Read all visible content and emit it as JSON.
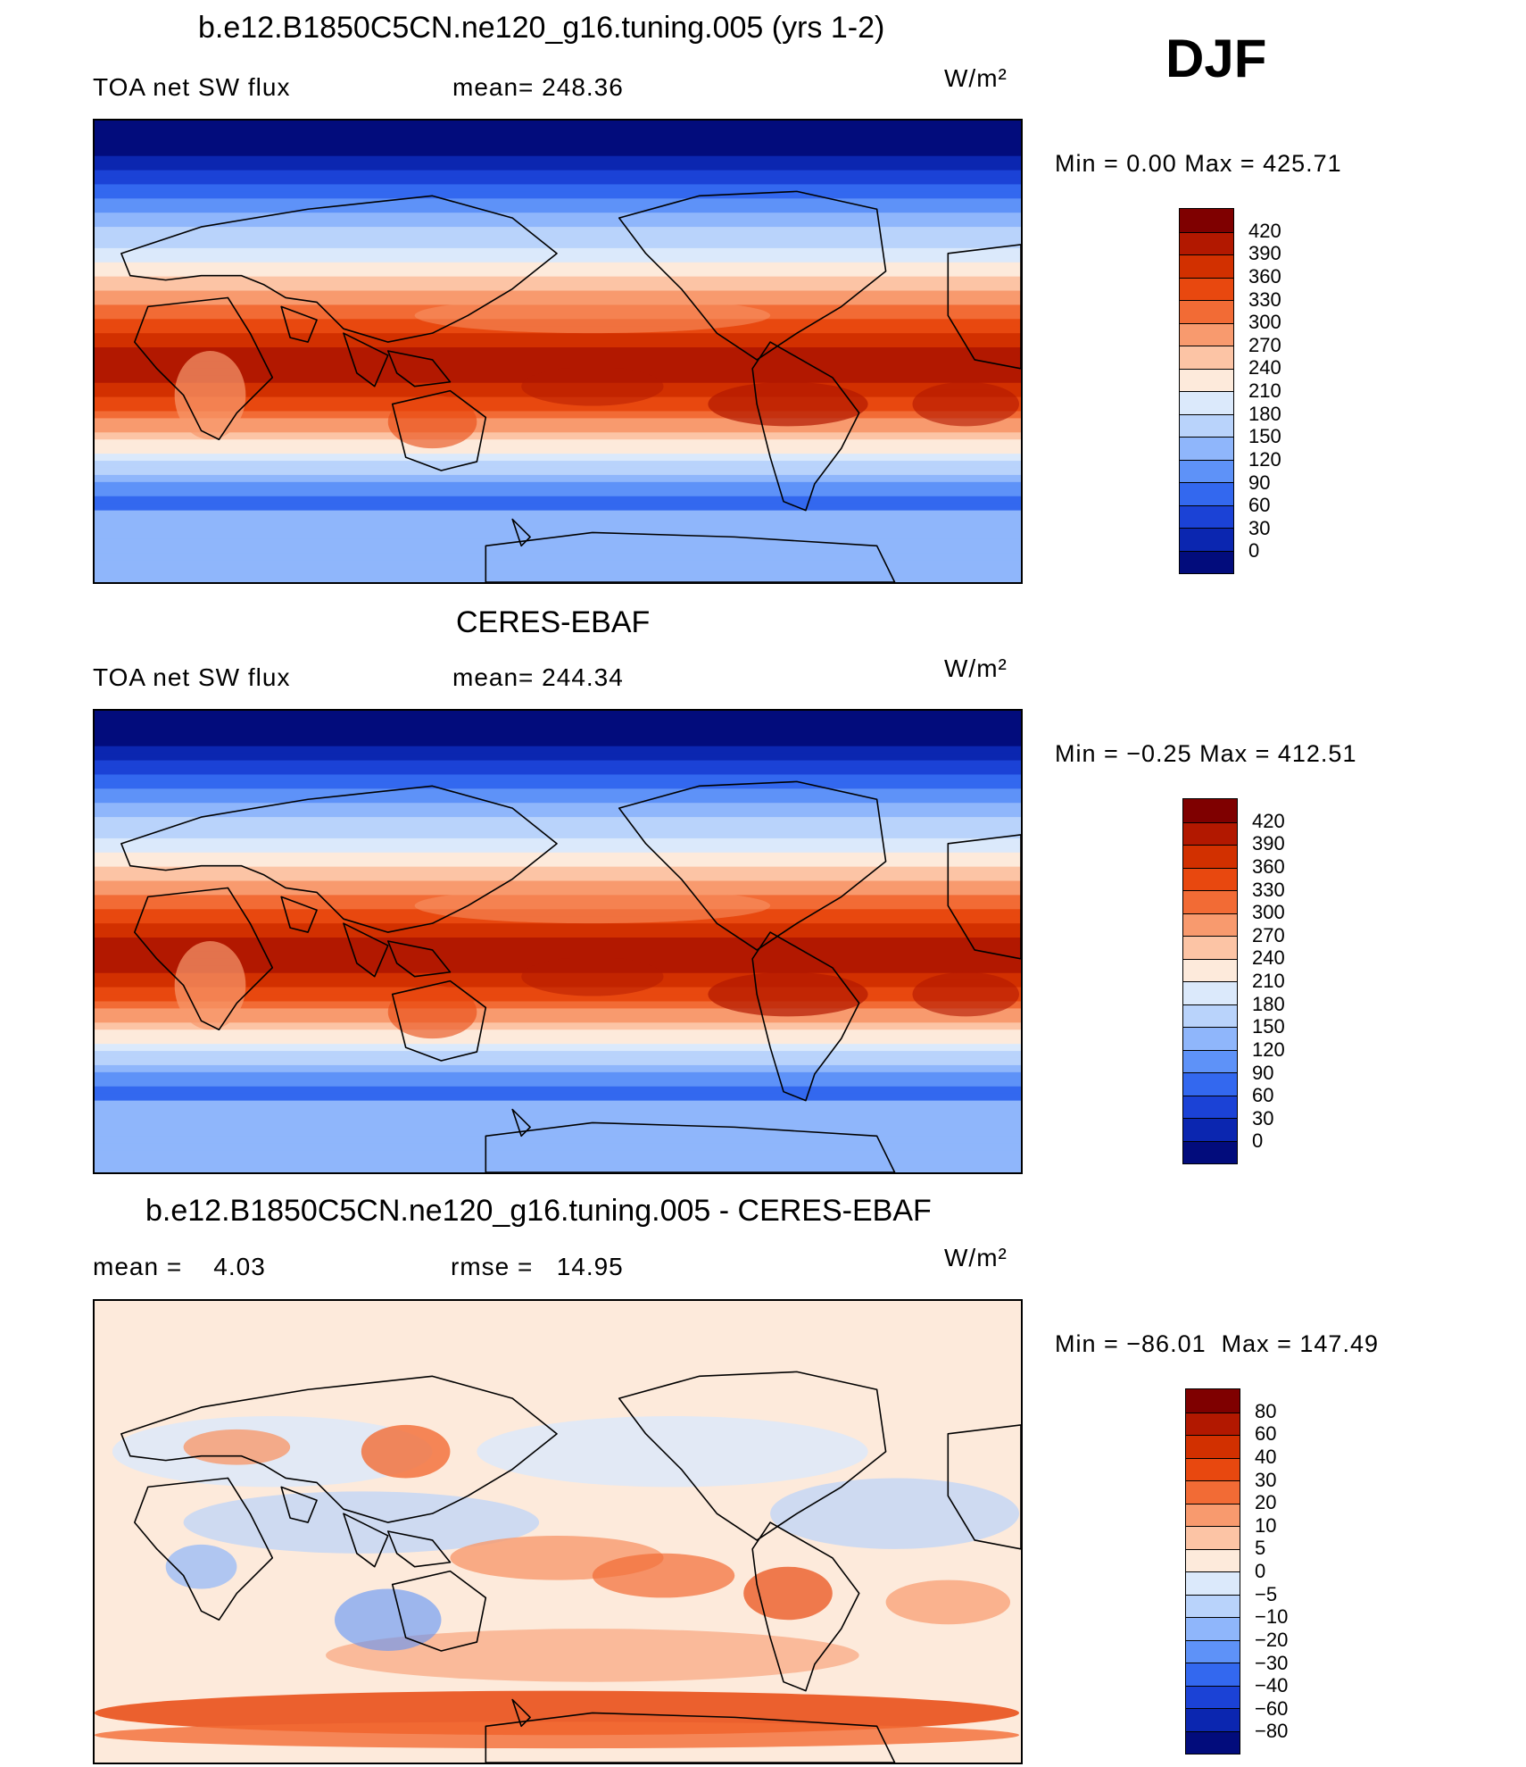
{
  "season": "DJF",
  "panels": [
    {
      "title": "b.e12.B1850C5CN.ne120_g16.tuning.005 (yrs 1-2)",
      "left_text": "TOA net SW flux",
      "mid_text": "mean= 248.36",
      "units": "W/m²",
      "minmax": "Min =    0.00  Max = 425.71",
      "colorbar": {
        "labels": [
          "420",
          "390",
          "360",
          "330",
          "300",
          "270",
          "240",
          "210",
          "180",
          "150",
          "120",
          "90",
          "60",
          "30",
          "0"
        ],
        "colors": [
          "#7f0000",
          "#b21800",
          "#d23000",
          "#e8480f",
          "#f26b35",
          "#f89a6e",
          "#fcc4a5",
          "#fdeadb",
          "#dbe9fb",
          "#b9d3fb",
          "#8fb6fb",
          "#5e92f8",
          "#3368ef",
          "#1b42d6",
          "#0b26b0",
          "#020c7c"
        ]
      },
      "map_style": "abs_model"
    },
    {
      "title": "CERES-EBAF",
      "left_text": "TOA net SW flux",
      "mid_text": "mean= 244.34",
      "units": "W/m²",
      "minmax": "Min =  −0.25  Max = 412.51",
      "colorbar": {
        "labels": [
          "420",
          "390",
          "360",
          "330",
          "300",
          "270",
          "240",
          "210",
          "180",
          "150",
          "120",
          "90",
          "60",
          "30",
          "0"
        ],
        "colors": [
          "#7f0000",
          "#b21800",
          "#d23000",
          "#e8480f",
          "#f26b35",
          "#f89a6e",
          "#fcc4a5",
          "#fdeadb",
          "#dbe9fb",
          "#b9d3fb",
          "#8fb6fb",
          "#5e92f8",
          "#3368ef",
          "#1b42d6",
          "#0b26b0",
          "#020c7c"
        ]
      },
      "map_style": "abs_obs"
    },
    {
      "title": "b.e12.B1850C5CN.ne120_g16.tuning.005 - CERES-EBAF",
      "left_text": "mean =    4.03",
      "mid_text": "rmse =   14.95",
      "units": "W/m²",
      "minmax": "Min = −86.01  Max = 147.49",
      "colorbar": {
        "labels": [
          "80",
          "60",
          "40",
          "30",
          "20",
          "10",
          "5",
          "0",
          "−5",
          "−10",
          "−20",
          "−30",
          "−40",
          "−60",
          "−80"
        ],
        "colors": [
          "#7f0000",
          "#b21800",
          "#d23000",
          "#e8480f",
          "#f26b35",
          "#f89a6e",
          "#fcc4a5",
          "#fdeadb",
          "#dbe9fb",
          "#b9d3fb",
          "#8fb6fb",
          "#5e92f8",
          "#3368ef",
          "#1b42d6",
          "#0b26b0",
          "#020c7c"
        ]
      },
      "map_style": "diff"
    }
  ]
}
